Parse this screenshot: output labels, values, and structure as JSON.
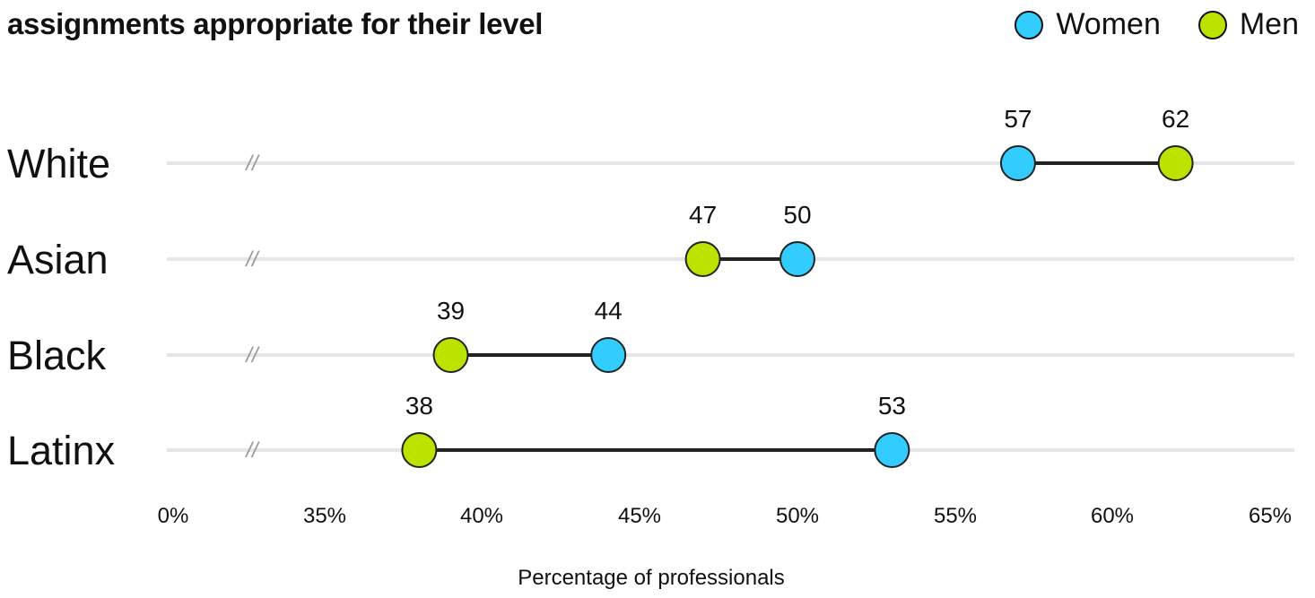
{
  "chart_data": {
    "type": "dumbbell",
    "title": "assignments appropriate for their level",
    "xlabel": "Percentage of professionals",
    "x_tick_labels": [
      "0%",
      "35%",
      "40%",
      "45%",
      "50%",
      "55%",
      "60%",
      "65%"
    ],
    "axis_break": "//",
    "categories": [
      "White",
      "Asian",
      "Black",
      "Latinx"
    ],
    "series": [
      {
        "name": "Women",
        "color": "#33ccff",
        "values": [
          57,
          50,
          44,
          53
        ]
      },
      {
        "name": "Men",
        "color": "#bbe300",
        "values": [
          62,
          47,
          39,
          38
        ]
      }
    ],
    "connector_color": "#222222",
    "track_color": "#e6e6e6",
    "legend": "top-right",
    "grid": false
  }
}
